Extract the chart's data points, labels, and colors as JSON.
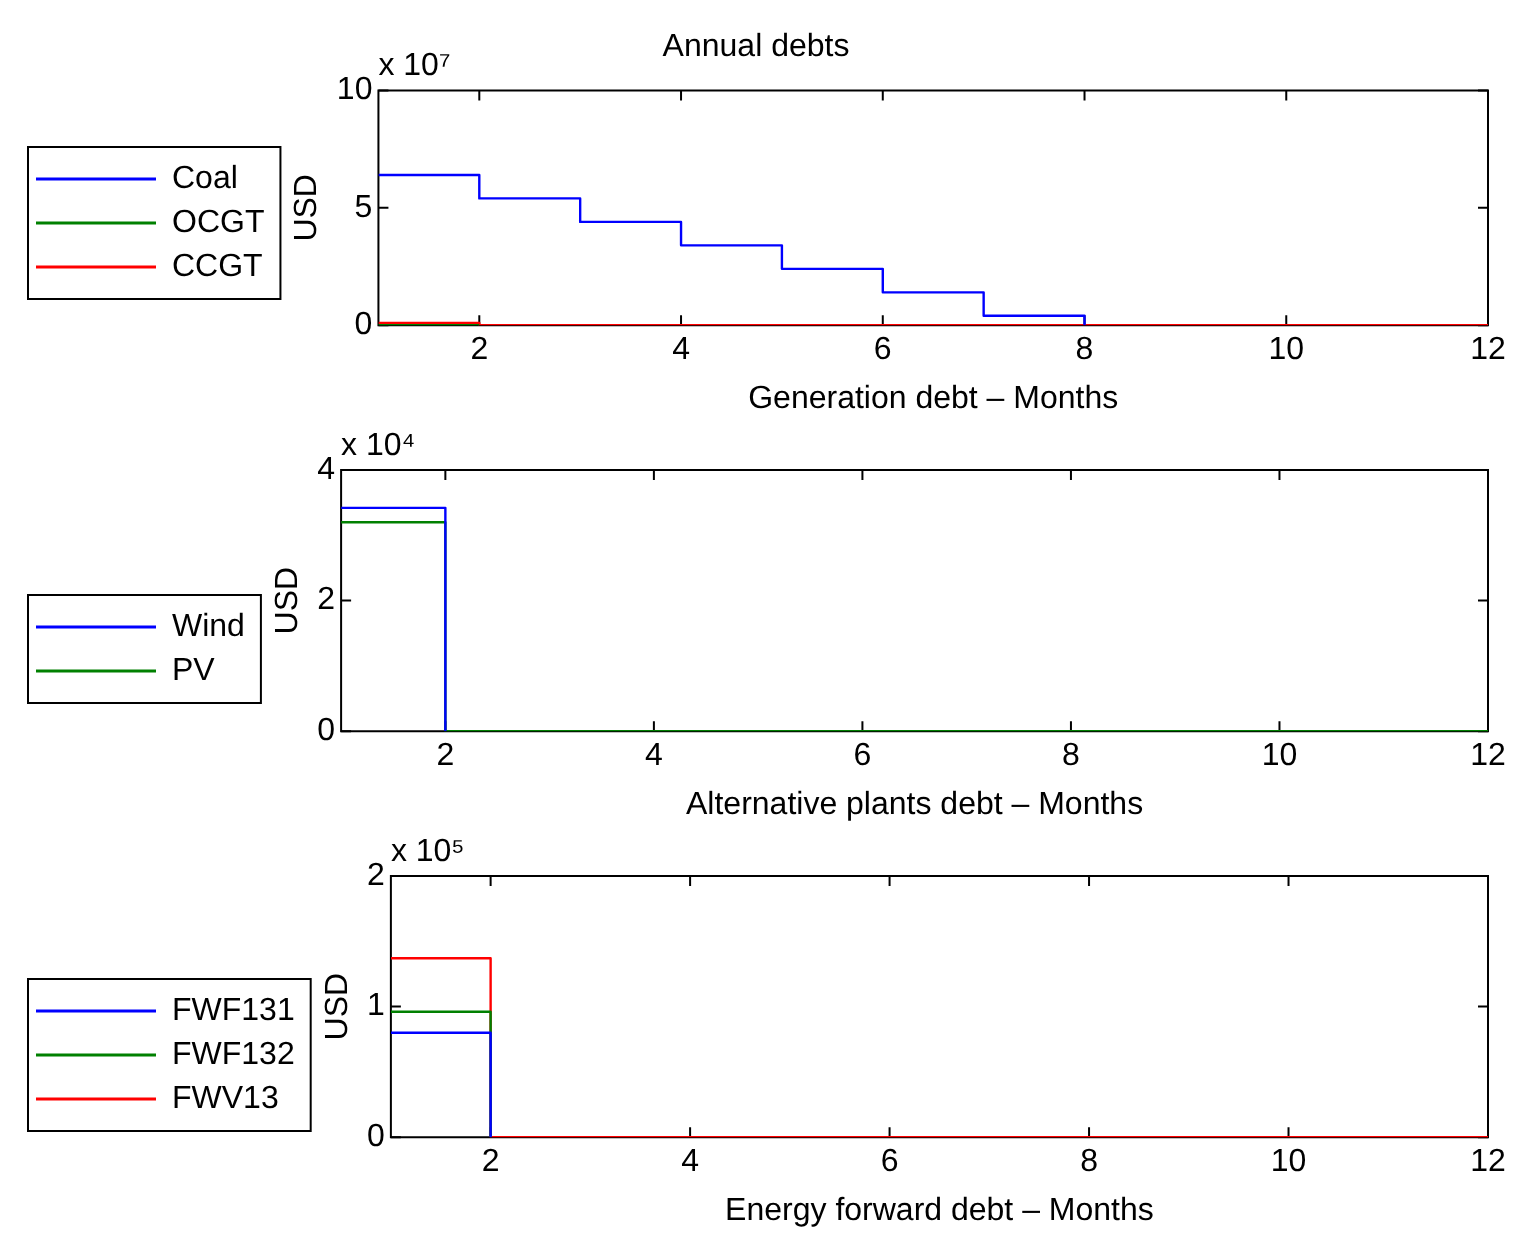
{
  "chart_data": [
    {
      "type": "step",
      "title": "Annual debts",
      "xlabel": "Generation debt – Months",
      "ylabel": "USD",
      "annotations": [
        "x 10⁷"
      ],
      "x": [
        1,
        2,
        3,
        4,
        5,
        6,
        7,
        8,
        9,
        10,
        11,
        12
      ],
      "xlim": [
        1,
        12
      ],
      "xticks": [
        2,
        4,
        6,
        8,
        10,
        12
      ],
      "ylim": [
        0,
        10
      ],
      "yticks": [
        0,
        5,
        10
      ],
      "grid": false,
      "legend": "left",
      "series": [
        {
          "name": "Coal",
          "color": "#0000ff",
          "values": [
            6.4,
            5.4,
            4.4,
            3.4,
            2.4,
            1.4,
            0.4,
            0,
            null,
            null,
            null,
            null
          ]
        },
        {
          "name": "OCGT",
          "color": "#008000",
          "values": [
            0,
            0,
            null,
            null,
            null,
            null,
            null,
            null,
            null,
            null,
            null,
            null
          ]
        },
        {
          "name": "CCGT",
          "color": "#ff0000",
          "values": [
            0.1,
            0,
            0,
            0,
            0,
            0,
            0,
            0,
            0,
            0,
            0,
            0
          ]
        }
      ]
    },
    {
      "type": "step",
      "xlabel": "Alternative plants debt – Months",
      "ylabel": "USD",
      "annotations": [
        "x 10⁴"
      ],
      "x": [
        1,
        2,
        3,
        4,
        5,
        6,
        7,
        8,
        9,
        10,
        11,
        12
      ],
      "xlim": [
        1,
        12
      ],
      "xticks": [
        2,
        4,
        6,
        8,
        10,
        12
      ],
      "ylim": [
        0,
        4
      ],
      "yticks": [
        0,
        2,
        4
      ],
      "grid": false,
      "legend": "left",
      "series": [
        {
          "name": "Wind",
          "color": "#0000ff",
          "values": [
            3.42,
            0,
            null,
            null,
            null,
            null,
            null,
            null,
            null,
            null,
            null,
            null
          ]
        },
        {
          "name": "PV",
          "color": "#008000",
          "values": [
            3.2,
            0,
            0,
            0,
            0,
            0,
            0,
            0,
            0,
            0,
            0,
            0
          ]
        }
      ]
    },
    {
      "type": "step",
      "xlabel": "Energy forward debt – Months",
      "ylabel": "USD",
      "annotations": [
        "x 10⁵"
      ],
      "x": [
        1,
        2,
        3,
        4,
        5,
        6,
        7,
        8,
        9,
        10,
        11,
        12
      ],
      "xlim": [
        1,
        12
      ],
      "xticks": [
        2,
        4,
        6,
        8,
        10,
        12
      ],
      "ylim": [
        0,
        2
      ],
      "yticks": [
        0,
        1,
        2
      ],
      "grid": false,
      "legend": "left",
      "series": [
        {
          "name": "FWF131",
          "color": "#0000ff",
          "values": [
            0.8,
            0,
            null,
            null,
            null,
            null,
            null,
            null,
            null,
            null,
            null,
            null
          ]
        },
        {
          "name": "FWF132",
          "color": "#008000",
          "values": [
            0.96,
            0,
            null,
            null,
            null,
            null,
            null,
            null,
            null,
            null,
            null,
            null
          ]
        },
        {
          "name": "FWV13",
          "color": "#ff0000",
          "values": [
            1.37,
            0,
            0,
            0,
            0,
            0,
            0,
            0,
            0,
            0,
            0,
            0
          ]
        }
      ]
    }
  ]
}
